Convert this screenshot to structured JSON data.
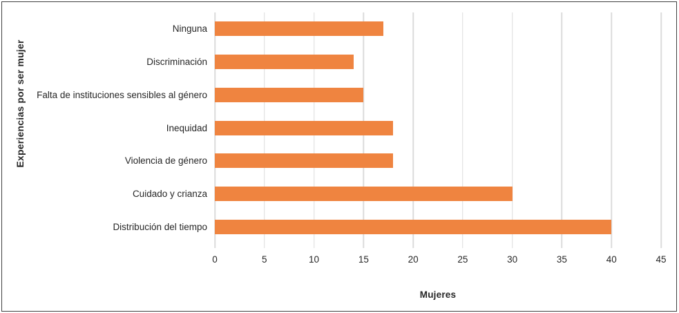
{
  "chart_data": {
    "type": "bar",
    "orientation": "horizontal",
    "categories": [
      "Ninguna",
      "Discriminación",
      "Falta de instituciones sensibles al género",
      "Inequidad",
      "Violencia de género",
      "Cuidado y crianza",
      "Distribución del tiempo"
    ],
    "values": [
      17,
      14,
      15,
      18,
      18,
      30,
      40
    ],
    "title": "",
    "xlabel": "Mujeres",
    "ylabel": "Experiencias por ser mujer",
    "xlim": [
      0,
      45
    ],
    "xticks": [
      0,
      5,
      10,
      15,
      20,
      25,
      30,
      35,
      40,
      45
    ],
    "grid": true,
    "legend": false,
    "bar_color": "#EF8440",
    "gridline_color": "#DBDBDB",
    "frame_border_color": "#3F3F3F",
    "text_color": "#262626"
  }
}
